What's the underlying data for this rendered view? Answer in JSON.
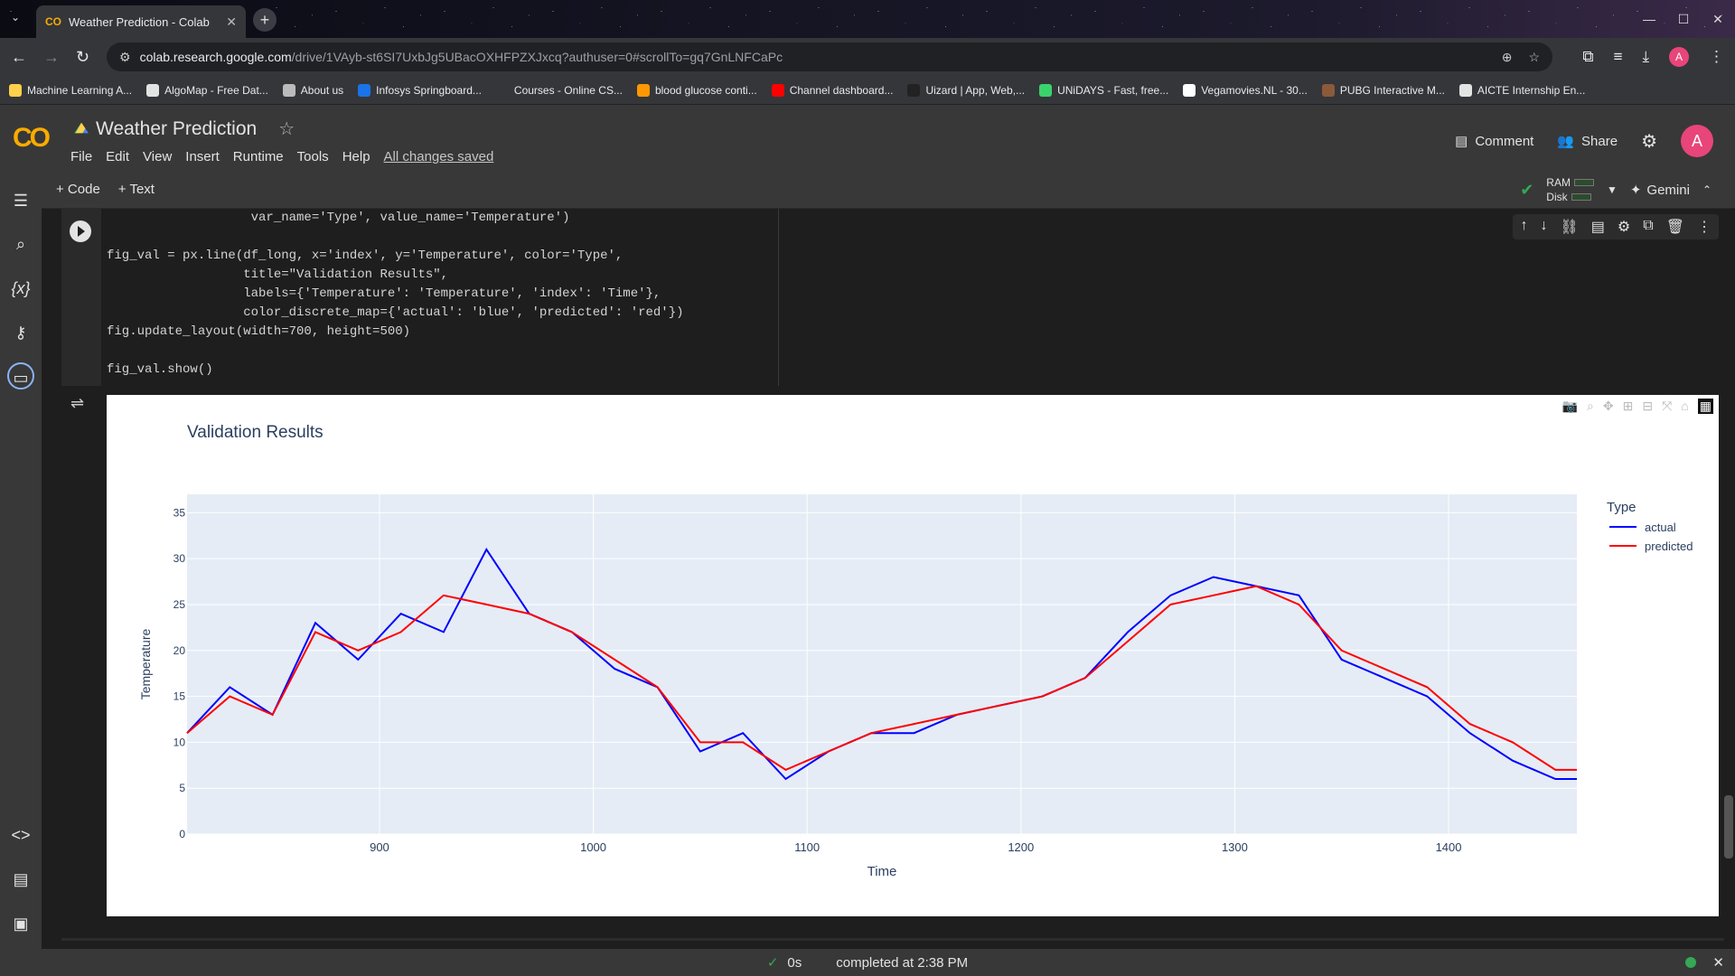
{
  "browser": {
    "tab_title": "Weather Prediction - Colab",
    "tab_icon_text": "CO",
    "url_host": "colab.research.google.com",
    "url_path": "/drive/1VAyb-st6SI7UxbJg5UBacOXHFPZXJxcq?authuser=0#scrollTo=gq7GnLNFCaPc",
    "profile_initial": "A"
  },
  "bookmarks": [
    {
      "label": "Machine Learning A...",
      "color": "#ffd04b"
    },
    {
      "label": "AlgoMap - Free Dat...",
      "color": "#e3e3e3"
    },
    {
      "label": "About us",
      "color": "#bbbbbb"
    },
    {
      "label": "Infosys Springboard...",
      "color": "#1a73e8"
    },
    {
      "label": "Courses - Online CS...",
      "color": "#35363a"
    },
    {
      "label": "blood glucose conti...",
      "color": "#ff9800"
    },
    {
      "label": "Channel dashboard...",
      "color": "#ff0000"
    },
    {
      "label": "Uizard | App, Web,...",
      "color": "#222222"
    },
    {
      "label": "UNiDAYS - Fast, free...",
      "color": "#3ad36b"
    },
    {
      "label": "Vegamovies.NL - 30...",
      "color": "#ffffff"
    },
    {
      "label": "PUBG Interactive M...",
      "color": "#8a5a3a"
    },
    {
      "label": "AICTE Internship En...",
      "color": "#e3e3e3"
    }
  ],
  "colab": {
    "logo": "CO",
    "notebook_title": "Weather Prediction",
    "menu": [
      "File",
      "Edit",
      "View",
      "Insert",
      "Runtime",
      "Tools",
      "Help"
    ],
    "saved_status": "All changes saved",
    "comment_label": "Comment",
    "share_label": "Share",
    "user_initial": "A",
    "add_code": "+ Code",
    "add_text": "+ Text",
    "ram_label": "RAM",
    "disk_label": "Disk",
    "gemini_label": "Gemini"
  },
  "code_lines": [
    "                   var_name='Type', value_name='Temperature')",
    "",
    "fig_val = px.line(df_long, x='index', y='Temperature', color='Type',",
    "                  title=\"Validation Results\",",
    "                  labels={'Temperature': 'Temperature', 'index': 'Time'},",
    "                  color_discrete_map={'actual': 'blue', 'predicted': 'red'})",
    "fig.update_layout(width=700, height=500)",
    "",
    "fig_val.show()"
  ],
  "status": {
    "duration": "0s",
    "completed": "completed at 2:38 PM"
  },
  "chart_data": {
    "type": "line",
    "title": "Validation Results",
    "xlabel": "Time",
    "ylabel": "Temperature",
    "xlim": [
      810,
      1460
    ],
    "ylim": [
      0,
      37
    ],
    "x_ticks": [
      900,
      1000,
      1100,
      1200,
      1300,
      1400
    ],
    "y_ticks": [
      0,
      5,
      10,
      15,
      20,
      25,
      30,
      35
    ],
    "grid": true,
    "legend_title": "Type",
    "legend_position": "right",
    "x": [
      810,
      830,
      850,
      870,
      890,
      910,
      930,
      950,
      970,
      990,
      1010,
      1030,
      1050,
      1070,
      1090,
      1110,
      1130,
      1150,
      1170,
      1190,
      1210,
      1230,
      1250,
      1270,
      1290,
      1310,
      1330,
      1350,
      1370,
      1390,
      1410,
      1430,
      1450,
      1460
    ],
    "series": [
      {
        "name": "actual",
        "color": "#0000ff",
        "values": [
          11,
          16,
          13,
          23,
          19,
          24,
          22,
          31,
          24,
          22,
          18,
          16,
          9,
          11,
          6,
          9,
          11,
          11,
          13,
          14,
          15,
          17,
          22,
          26,
          28,
          27,
          26,
          19,
          17,
          15,
          11,
          8,
          6,
          6
        ]
      },
      {
        "name": "predicted",
        "color": "#ff0000",
        "values": [
          11,
          15,
          13,
          22,
          20,
          22,
          26,
          25,
          24,
          22,
          19,
          16,
          10,
          10,
          7,
          9,
          11,
          12,
          13,
          14,
          15,
          17,
          21,
          25,
          26,
          27,
          25,
          20,
          18,
          16,
          12,
          10,
          7,
          7
        ]
      }
    ]
  }
}
